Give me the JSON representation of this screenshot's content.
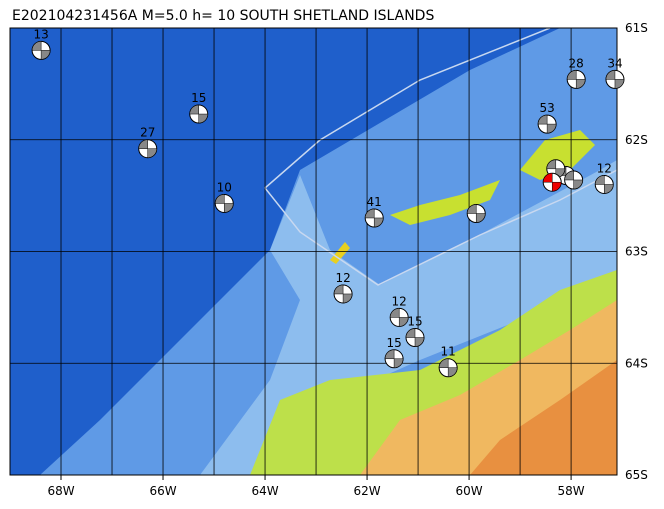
{
  "map": {
    "title": "E202104231456A M=5.0 h= 10 SOUTH SHETLAND ISLANDS",
    "lonlim": [
      -69,
      -57.1
    ],
    "latlim": [
      -61,
      -65
    ],
    "lon_ticks": [
      {
        "value": -68,
        "label": "68W"
      },
      {
        "value": -66,
        "label": "66W"
      },
      {
        "value": -64,
        "label": "64W"
      },
      {
        "value": -62,
        "label": "62W"
      },
      {
        "value": -60,
        "label": "60W"
      },
      {
        "value": -58,
        "label": "58W"
      }
    ],
    "lat_ticks": [
      {
        "value": -61,
        "label": "61S"
      },
      {
        "value": -62,
        "label": "62S"
      },
      {
        "value": -63,
        "label": "63S"
      },
      {
        "value": -64,
        "label": "64S"
      },
      {
        "value": -65,
        "label": "65S"
      }
    ],
    "events": [
      {
        "label": "13",
        "lon": -68.39,
        "lat": -61.2
      },
      {
        "label": "15",
        "lon": -65.3,
        "lat": -61.77
      },
      {
        "label": "27",
        "lon": -66.3,
        "lat": -62.08
      },
      {
        "label": "10",
        "lon": -64.8,
        "lat": -62.57
      },
      {
        "label": "41",
        "lon": -61.86,
        "lat": -62.7
      },
      {
        "label": "12",
        "lon": -62.47,
        "lat": -63.38
      },
      {
        "label": "12",
        "lon": -61.37,
        "lat": -63.59
      },
      {
        "label": "15",
        "lon": -61.06,
        "lat": -63.77
      },
      {
        "label": "15",
        "lon": -61.47,
        "lat": -63.96
      },
      {
        "label": "11",
        "lon": -60.41,
        "lat": -64.04
      },
      {
        "label": "53",
        "lon": -58.47,
        "lat": -61.86
      },
      {
        "label": "28",
        "lon": -57.9,
        "lat": -61.46
      },
      {
        "label": "34",
        "lon": -57.14,
        "lat": -61.46
      },
      {
        "label": "12",
        "lon": -57.35,
        "lat": -62.4
      },
      {
        "label": null,
        "lon": -59.86,
        "lat": -62.66
      },
      {
        "label": null,
        "lon": -58.1,
        "lat": -62.32
      },
      {
        "label": null,
        "lon": -57.95,
        "lat": -62.36
      },
      {
        "label": null,
        "lon": -58.3,
        "lat": -62.26
      },
      {
        "label": null,
        "lon": -58.37,
        "lat": -62.38,
        "main": true
      }
    ]
  }
}
